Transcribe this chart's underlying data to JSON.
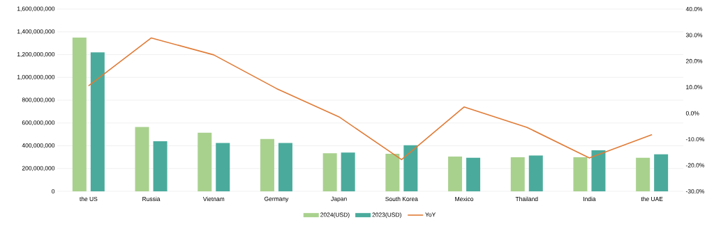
{
  "chart_data": {
    "type": "bar",
    "categories": [
      "the US",
      "Russia",
      "Vietnam",
      "Germany",
      "Japan",
      "South Korea",
      "Mexico",
      "Thailand",
      "India",
      "the UAE"
    ],
    "series": [
      {
        "name": "2024(USD)",
        "type": "bar",
        "color": "#a9d18e",
        "values": [
          1350000000,
          565000000,
          515000000,
          460000000,
          335000000,
          330000000,
          305000000,
          300000000,
          300000000,
          295000000
        ]
      },
      {
        "name": "2023(USD)",
        "type": "bar",
        "color": "#4aab9c",
        "values": [
          1220000000,
          440000000,
          425000000,
          425000000,
          340000000,
          405000000,
          295000000,
          315000000,
          360000000,
          325000000
        ]
      },
      {
        "name": "YoY",
        "type": "line",
        "axis": "y2",
        "color": "#e07b36",
        "values": [
          10.5,
          28.9,
          22.4,
          9.5,
          -1.4,
          -17.8,
          2.4,
          -5.4,
          -17.2,
          -8.2
        ]
      }
    ],
    "ylim": [
      0,
      1600000000
    ],
    "yticks": [
      {
        "value": 0,
        "label": "0"
      },
      {
        "value": 200000000,
        "label": "200,000,000"
      },
      {
        "value": 400000000,
        "label": "400,000,000"
      },
      {
        "value": 600000000,
        "label": "600,000,000"
      },
      {
        "value": 800000000,
        "label": "800,000,000"
      },
      {
        "value": 1000000000,
        "label": "1,000,000,000"
      },
      {
        "value": 1200000000,
        "label": "1,200,000,000"
      },
      {
        "value": 1400000000,
        "label": "1,400,000,000"
      },
      {
        "value": 1600000000,
        "label": "1,600,000,000"
      }
    ],
    "y2lim": [
      -30,
      40
    ],
    "y2ticks": [
      {
        "value": -30,
        "label": "-30.0%"
      },
      {
        "value": -20,
        "label": "-20.0%"
      },
      {
        "value": -10,
        "label": "-10.0%"
      },
      {
        "value": 0,
        "label": "0.0%"
      },
      {
        "value": 10,
        "label": "10.0%"
      },
      {
        "value": 20,
        "label": "20.0%"
      },
      {
        "value": 30,
        "label": "30.0%"
      },
      {
        "value": 40,
        "label": "40.0%"
      }
    ],
    "grid": "y",
    "legend": "bottom"
  }
}
